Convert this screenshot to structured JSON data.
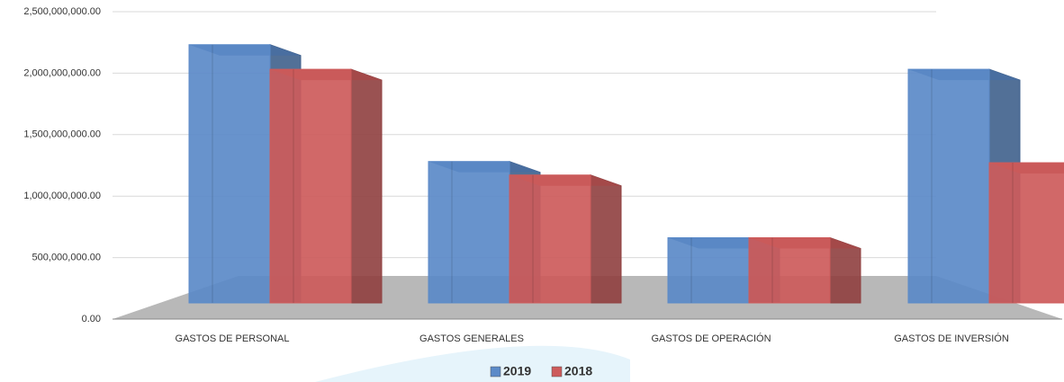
{
  "chart_data": {
    "type": "bar3d",
    "categories": [
      "GASTOS DE PERSONAL",
      "GASTOS GENERALES",
      "GASTOS DE OPERACIÓN",
      "GASTOS DE INVERSIÓN"
    ],
    "series": [
      {
        "name": "2019",
        "color": "#5b8ac8",
        "values": [
          2100000000,
          1150000000,
          530000000,
          1900000000
        ]
      },
      {
        "name": "2018",
        "color": "#cd5b5b",
        "values": [
          1900000000,
          1040000000,
          530000000,
          1140000000
        ]
      }
    ],
    "ylim": [
      0,
      2500000000
    ],
    "yticks": [
      {
        "value": 0,
        "label": "0.00"
      },
      {
        "value": 500000000,
        "label": "500,000,000.00"
      },
      {
        "value": 1000000000,
        "label": "1,000,000,000.00"
      },
      {
        "value": 1500000000,
        "label": "1,500,000,000.00"
      },
      {
        "value": 2000000000,
        "label": "2,000,000,000.00"
      },
      {
        "value": 2500000000,
        "label": "2,500,000,000.00"
      }
    ],
    "grid": true,
    "legend": "bottom"
  }
}
